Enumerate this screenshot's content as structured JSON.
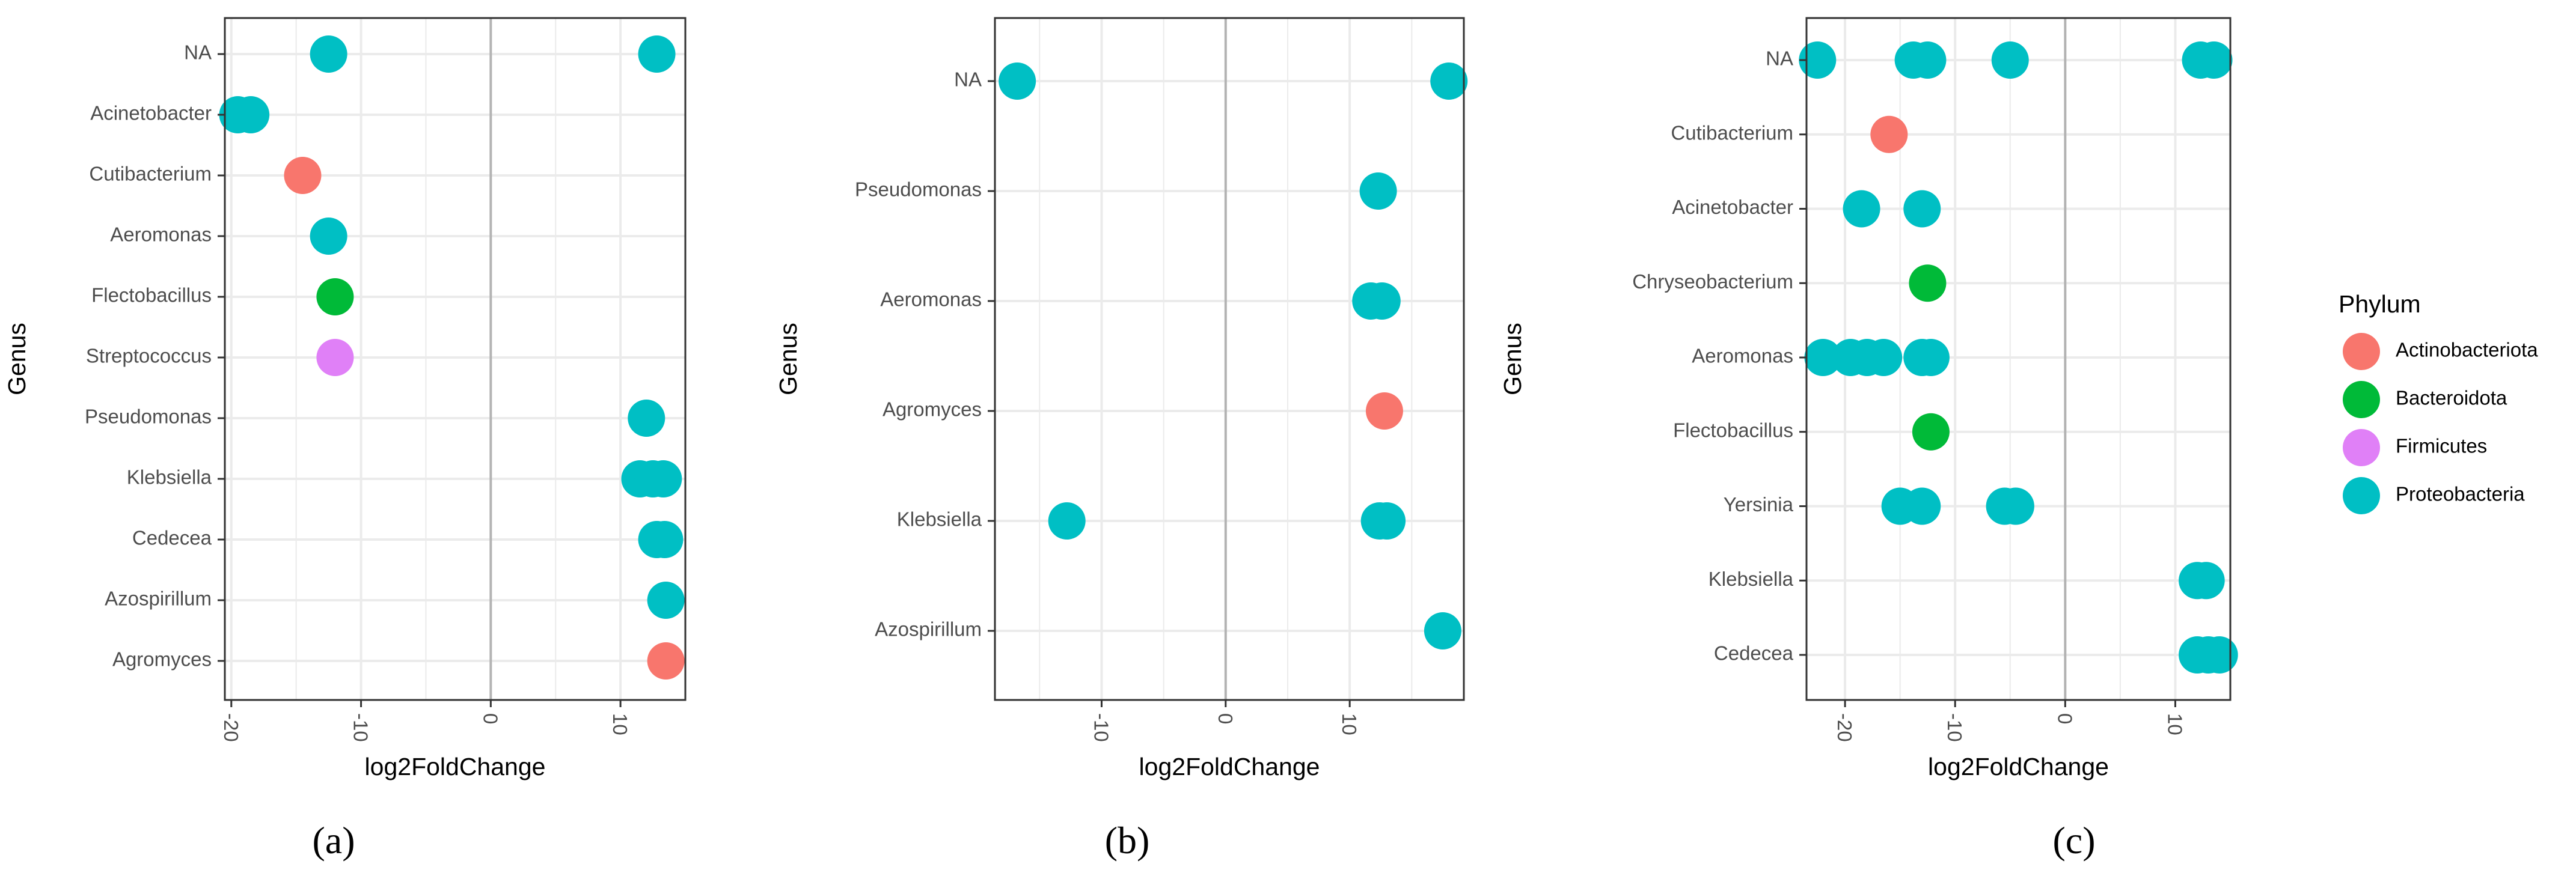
{
  "colors": {
    "Actinobacteriota": "#F8766D",
    "Bacteroidota": "#00BA38",
    "Firmicutes": "#E080F7",
    "Proteobacteria": "#00BFC4",
    "grid": "#ebebeb",
    "zero_line": "#b3b3b3",
    "panel_border": "#333333"
  },
  "legend": {
    "title": "Phylum",
    "entries": [
      "Actinobacteriota",
      "Bacteroidota",
      "Firmicutes",
      "Proteobacteria"
    ]
  },
  "chart_data": [
    {
      "type": "scatter",
      "panel_label": "(a)",
      "xlabel": "log2FoldChange",
      "ylabel": "Genus",
      "xlim": [
        -20.5,
        15
      ],
      "xticks": [
        -20,
        -10,
        0,
        10
      ],
      "categories": [
        "NA",
        "Acinetobacter",
        "Cutibacterium",
        "Aeromonas",
        "Flectobacillus",
        "Streptococcus",
        "Pseudomonas",
        "Klebsiella",
        "Cedecea",
        "Azospirillum",
        "Agromyces"
      ],
      "points": [
        {
          "genus": "NA",
          "x": -12.5,
          "phylum": "Proteobacteria"
        },
        {
          "genus": "NA",
          "x": 12.8,
          "phylum": "Proteobacteria"
        },
        {
          "genus": "Acinetobacter",
          "x": -19.5,
          "phylum": "Proteobacteria"
        },
        {
          "genus": "Acinetobacter",
          "x": -18.5,
          "phylum": "Proteobacteria"
        },
        {
          "genus": "Cutibacterium",
          "x": -14.5,
          "phylum": "Actinobacteriota"
        },
        {
          "genus": "Aeromonas",
          "x": -12.5,
          "phylum": "Proteobacteria"
        },
        {
          "genus": "Flectobacillus",
          "x": -12.0,
          "phylum": "Bacteroidota"
        },
        {
          "genus": "Streptococcus",
          "x": -12.0,
          "phylum": "Firmicutes"
        },
        {
          "genus": "Pseudomonas",
          "x": 12.0,
          "phylum": "Proteobacteria"
        },
        {
          "genus": "Klebsiella",
          "x": 11.5,
          "phylum": "Proteobacteria"
        },
        {
          "genus": "Klebsiella",
          "x": 12.5,
          "phylum": "Proteobacteria"
        },
        {
          "genus": "Klebsiella",
          "x": 13.3,
          "phylum": "Proteobacteria"
        },
        {
          "genus": "Cedecea",
          "x": 12.8,
          "phylum": "Proteobacteria"
        },
        {
          "genus": "Cedecea",
          "x": 13.4,
          "phylum": "Proteobacteria"
        },
        {
          "genus": "Azospirillum",
          "x": 13.5,
          "phylum": "Proteobacteria"
        },
        {
          "genus": "Agromyces",
          "x": 13.5,
          "phylum": "Actinobacteriota"
        }
      ]
    },
    {
      "type": "scatter",
      "panel_label": "(b)",
      "xlabel": "log2FoldChange",
      "ylabel": "Genus",
      "xlim": [
        -18.6,
        19.2
      ],
      "xticks": [
        -10,
        0,
        10
      ],
      "categories": [
        "NA",
        "Pseudomonas",
        "Aeromonas",
        "Agromyces",
        "Klebsiella",
        "Azospirillum"
      ],
      "points": [
        {
          "genus": "NA",
          "x": -16.8,
          "phylum": "Proteobacteria"
        },
        {
          "genus": "NA",
          "x": 18.0,
          "phylum": "Proteobacteria"
        },
        {
          "genus": "Pseudomonas",
          "x": 12.3,
          "phylum": "Proteobacteria"
        },
        {
          "genus": "Aeromonas",
          "x": 11.7,
          "phylum": "Proteobacteria"
        },
        {
          "genus": "Aeromonas",
          "x": 12.6,
          "phylum": "Proteobacteria"
        },
        {
          "genus": "Agromyces",
          "x": 12.8,
          "phylum": "Actinobacteriota"
        },
        {
          "genus": "Klebsiella",
          "x": -12.8,
          "phylum": "Proteobacteria"
        },
        {
          "genus": "Klebsiella",
          "x": 12.4,
          "phylum": "Proteobacteria"
        },
        {
          "genus": "Klebsiella",
          "x": 13.0,
          "phylum": "Proteobacteria"
        },
        {
          "genus": "Azospirillum",
          "x": 17.5,
          "phylum": "Proteobacteria"
        }
      ]
    },
    {
      "type": "scatter",
      "panel_label": "(c)",
      "xlabel": "log2FoldChange",
      "ylabel": "Genus",
      "xlim": [
        -23.5,
        15
      ],
      "xticks": [
        -20,
        -10,
        0,
        10
      ],
      "categories": [
        "NA",
        "Cutibacterium",
        "Acinetobacter",
        "Chryseobacterium",
        "Aeromonas",
        "Flectobacillus",
        "Yersinia",
        "Klebsiella",
        "Cedecea"
      ],
      "points": [
        {
          "genus": "NA",
          "x": -22.5,
          "phylum": "Proteobacteria"
        },
        {
          "genus": "NA",
          "x": -13.8,
          "phylum": "Proteobacteria"
        },
        {
          "genus": "NA",
          "x": -12.5,
          "phylum": "Proteobacteria"
        },
        {
          "genus": "NA",
          "x": -5.0,
          "phylum": "Proteobacteria"
        },
        {
          "genus": "NA",
          "x": 12.3,
          "phylum": "Proteobacteria"
        },
        {
          "genus": "NA",
          "x": 13.5,
          "phylum": "Proteobacteria"
        },
        {
          "genus": "Cutibacterium",
          "x": -16.0,
          "phylum": "Actinobacteriota"
        },
        {
          "genus": "Acinetobacter",
          "x": -18.5,
          "phylum": "Proteobacteria"
        },
        {
          "genus": "Acinetobacter",
          "x": -13.0,
          "phylum": "Proteobacteria"
        },
        {
          "genus": "Chryseobacterium",
          "x": -12.5,
          "phylum": "Bacteroidota"
        },
        {
          "genus": "Aeromonas",
          "x": -22.0,
          "phylum": "Proteobacteria"
        },
        {
          "genus": "Aeromonas",
          "x": -19.5,
          "phylum": "Proteobacteria"
        },
        {
          "genus": "Aeromonas",
          "x": -18.0,
          "phylum": "Proteobacteria"
        },
        {
          "genus": "Aeromonas",
          "x": -16.5,
          "phylum": "Proteobacteria"
        },
        {
          "genus": "Aeromonas",
          "x": -13.0,
          "phylum": "Proteobacteria"
        },
        {
          "genus": "Aeromonas",
          "x": -12.2,
          "phylum": "Proteobacteria"
        },
        {
          "genus": "Flectobacillus",
          "x": -12.2,
          "phylum": "Bacteroidota"
        },
        {
          "genus": "Yersinia",
          "x": -15.0,
          "phylum": "Proteobacteria"
        },
        {
          "genus": "Yersinia",
          "x": -13.0,
          "phylum": "Proteobacteria"
        },
        {
          "genus": "Yersinia",
          "x": -5.5,
          "phylum": "Proteobacteria"
        },
        {
          "genus": "Yersinia",
          "x": -4.5,
          "phylum": "Proteobacteria"
        },
        {
          "genus": "Klebsiella",
          "x": 12.0,
          "phylum": "Proteobacteria"
        },
        {
          "genus": "Klebsiella",
          "x": 12.8,
          "phylum": "Proteobacteria"
        },
        {
          "genus": "Cedecea",
          "x": 12.0,
          "phylum": "Proteobacteria"
        },
        {
          "genus": "Cedecea",
          "x": 13.0,
          "phylum": "Proteobacteria"
        },
        {
          "genus": "Cedecea",
          "x": 14.0,
          "phylum": "Proteobacteria"
        }
      ]
    }
  ]
}
